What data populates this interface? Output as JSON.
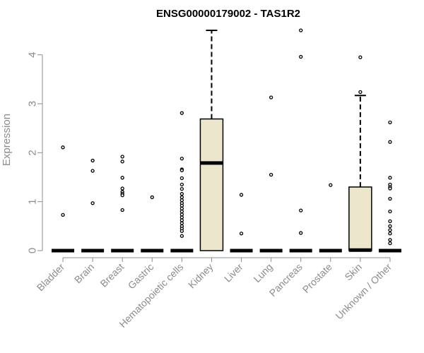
{
  "colors": {
    "box_fill": "#ece6cc",
    "box_stroke": "#000000",
    "axis": "#8c8c8c",
    "text_muted": "#8c8c8c",
    "title": "#000000"
  },
  "chart_data": {
    "type": "box",
    "title": "ENSG00000179002 - TAS1R2",
    "xlabel": "",
    "ylabel": "Expression",
    "ylim": [
      0,
      4.5
    ],
    "yticks": [
      0,
      1,
      2,
      3,
      4
    ],
    "ytick_labels": [
      "0",
      "1",
      "2",
      "3",
      "4"
    ],
    "categories": [
      "Bladder",
      "Brain",
      "Breast",
      "Gastric",
      "Hematopoietic cells",
      "Kidney",
      "Liver",
      "Lung",
      "Pancreas",
      "Prostate",
      "Skin",
      "Unknown / Other"
    ],
    "boxes": [
      {
        "category": "Bladder",
        "q1": 0,
        "median": 0,
        "q3": 0,
        "whisker_low": 0,
        "whisker_high": 0,
        "outliers": [
          2.11,
          0.73
        ]
      },
      {
        "category": "Brain",
        "q1": 0,
        "median": 0,
        "q3": 0,
        "whisker_low": 0,
        "whisker_high": 0,
        "outliers": [
          1.84,
          1.63,
          0.97
        ]
      },
      {
        "category": "Breast",
        "q1": 0,
        "median": 0,
        "q3": 0,
        "whisker_low": 0,
        "whisker_high": 0,
        "outliers": [
          1.92,
          1.82,
          1.49,
          1.27,
          1.2,
          1.16,
          1.13,
          0.83
        ]
      },
      {
        "category": "Gastric",
        "q1": 0,
        "median": 0,
        "q3": 0,
        "whisker_low": 0,
        "whisker_high": 0,
        "outliers": [
          1.09
        ]
      },
      {
        "category": "Hematopoietic cells",
        "q1": 0,
        "median": 0,
        "q3": 0,
        "whisker_low": 0,
        "whisker_high": 0,
        "outliers": [
          2.81,
          1.88,
          1.66,
          1.64,
          1.48,
          1.35,
          1.26,
          1.16,
          1.09,
          1.03,
          0.97,
          0.92,
          0.86,
          0.8,
          0.74,
          0.68,
          0.62,
          0.56,
          0.5,
          0.45,
          0.4,
          0.3
        ]
      },
      {
        "category": "Kidney",
        "q1": 0,
        "median": 1.79,
        "q3": 2.69,
        "whisker_low": 0,
        "whisker_high": 4.5,
        "outliers": []
      },
      {
        "category": "Liver",
        "q1": 0,
        "median": 0,
        "q3": 0,
        "whisker_low": 0,
        "whisker_high": 0,
        "outliers": [
          1.14,
          0.35
        ]
      },
      {
        "category": "Lung",
        "q1": 0,
        "median": 0,
        "q3": 0,
        "whisker_low": 0,
        "whisker_high": 0,
        "outliers": [
          3.13,
          1.55
        ]
      },
      {
        "category": "Pancreas",
        "q1": 0,
        "median": 0,
        "q3": 0,
        "whisker_low": 0,
        "whisker_high": 0,
        "outliers": [
          4.5,
          3.96,
          0.82,
          0.36
        ]
      },
      {
        "category": "Prostate",
        "q1": 0,
        "median": 0,
        "q3": 0,
        "whisker_low": 0,
        "whisker_high": 0,
        "outliers": [
          1.34
        ]
      },
      {
        "category": "Skin",
        "q1": 0,
        "median": 0.01,
        "q3": 1.3,
        "whisker_low": 0,
        "whisker_high": 3.17,
        "outliers": [
          3.95,
          3.24
        ]
      },
      {
        "category": "Unknown / Other",
        "q1": 0,
        "median": 0,
        "q3": 0,
        "whisker_low": 0,
        "whisker_high": 0,
        "outliers": [
          2.62,
          2.22,
          1.49,
          1.35,
          1.3,
          1.27,
          1.06,
          0.8,
          0.6,
          0.5,
          0.42,
          0.35,
          0.22,
          0.15
        ]
      }
    ],
    "grid": false,
    "legend": "none"
  }
}
